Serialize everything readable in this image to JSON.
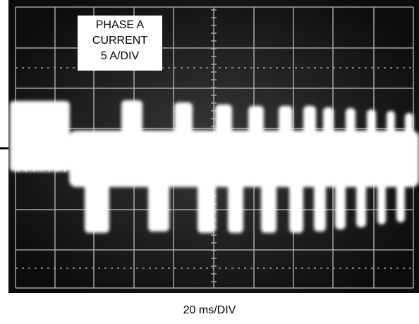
{
  "label_box": {
    "lines": [
      "PHASE A",
      "CURRENT",
      "5 A/DIV"
    ]
  },
  "caption": "20 ms/DIV"
}
